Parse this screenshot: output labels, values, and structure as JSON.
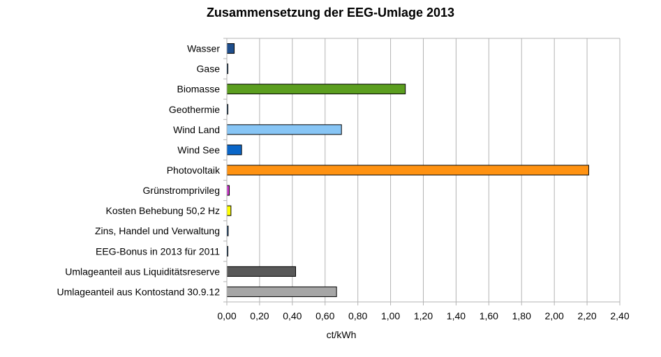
{
  "chart_data": {
    "type": "bar",
    "orientation": "horizontal",
    "title": "Zusammensetzung der EEG-Umlage 2013",
    "xlabel": "ct/kWh",
    "ylabel": "",
    "xlim": [
      0,
      2.4
    ],
    "x_ticks": [
      "0,00",
      "0,20",
      "0,40",
      "0,60",
      "0,80",
      "1,00",
      "1,20",
      "1,40",
      "1,60",
      "1,80",
      "2,00",
      "2,20",
      "2,40"
    ],
    "grid": "vertical",
    "legend": "none",
    "categories": [
      "Wasser",
      "Gase",
      "Biomasse",
      "Geothermie",
      "Wind Land",
      "Wind See",
      "Photovoltaik",
      "Grünstromprivileg",
      "Kosten Behebung 50,2 Hz",
      "Zins, Handel und Verwaltung",
      "EEG-Bonus in 2013 für 2011",
      "Umlageanteil aus Liquiditätsreserve",
      "Umlageanteil aus Kontostand 30.9.12"
    ],
    "values": [
      0.045,
      0.005,
      1.09,
      0.005,
      0.7,
      0.09,
      2.21,
      0.015,
      0.025,
      0.008,
      0.003,
      0.42,
      0.67
    ],
    "colors": [
      "#1f4e8c",
      "#003366",
      "#5b9e1f",
      "#003366",
      "#87c5f5",
      "#0a66c8",
      "#ff9211",
      "#cc33cc",
      "#ffff00",
      "#003366",
      "#003366",
      "#595959",
      "#a6a6a6"
    ]
  }
}
